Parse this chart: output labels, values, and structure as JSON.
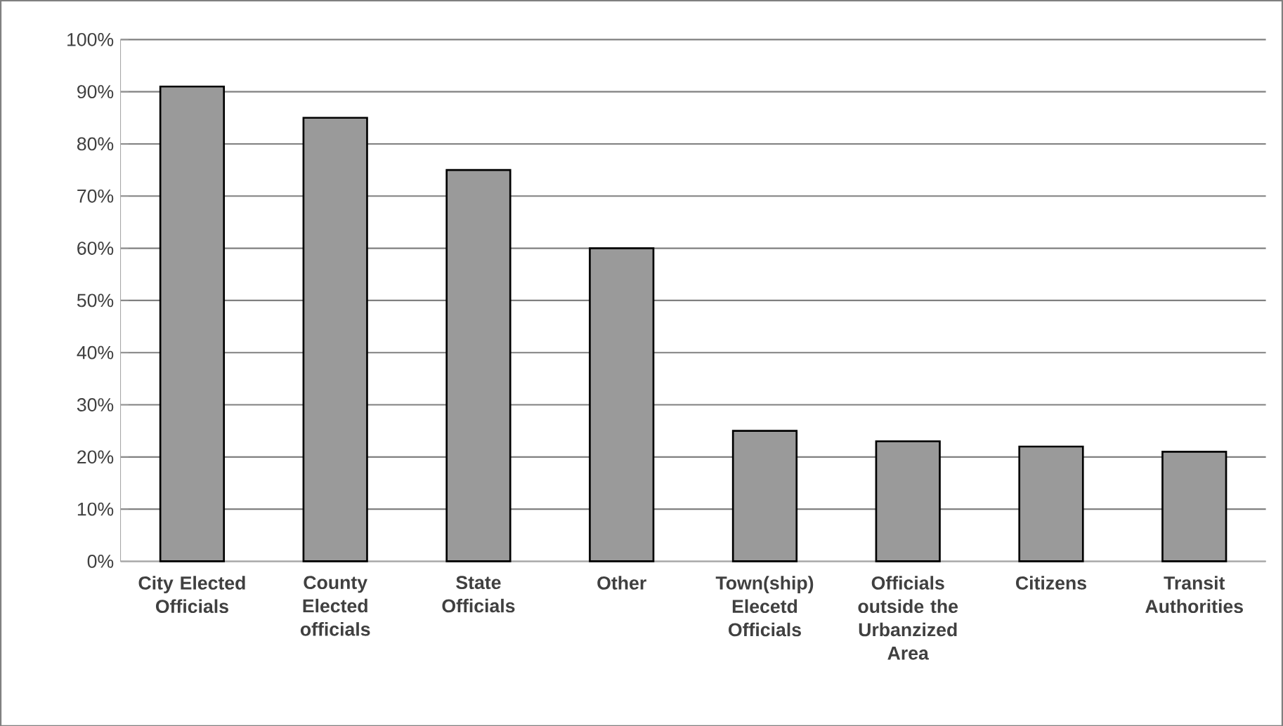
{
  "chart_data": {
    "type": "bar",
    "categories": [
      "City Elected Officials",
      "County Elected officials",
      "State Officials",
      "Other",
      "Town(ship) Elecetd Officials",
      "Officials outside the Urbanzized Area",
      "Citizens",
      "Transit Authorities"
    ],
    "values": [
      91,
      85,
      75,
      60,
      25,
      23,
      22,
      21
    ],
    "color": "#9a9a9a",
    "ylim": [
      0,
      100
    ],
    "yticks": [
      {
        "value": 0,
        "label": "0%"
      },
      {
        "value": 10,
        "label": "10%"
      },
      {
        "value": 20,
        "label": "20%"
      },
      {
        "value": 30,
        "label": "30%"
      },
      {
        "value": 40,
        "label": "40%"
      },
      {
        "value": 50,
        "label": "50%"
      },
      {
        "value": 60,
        "label": "60%"
      },
      {
        "value": 70,
        "label": "70%"
      },
      {
        "value": 80,
        "label": "80%"
      },
      {
        "value": 90,
        "label": "90%"
      },
      {
        "value": 100,
        "label": "100%"
      }
    ],
    "grid": "y"
  }
}
